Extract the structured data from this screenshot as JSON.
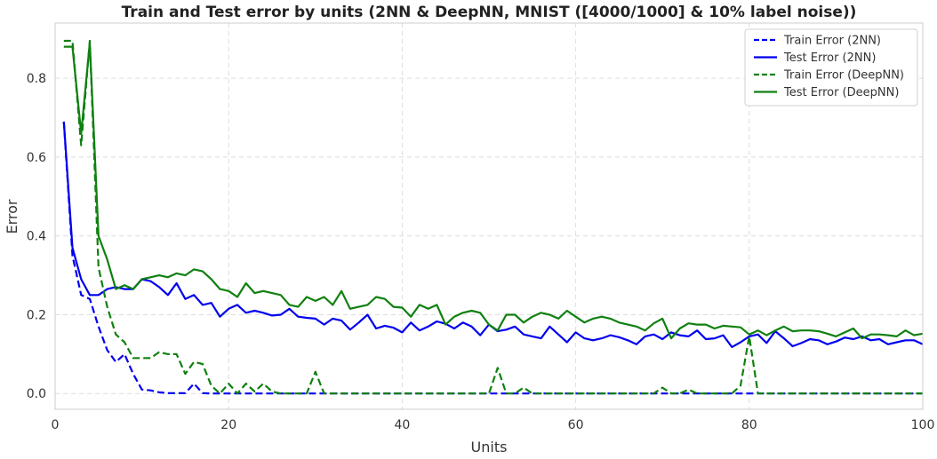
{
  "chart_data": {
    "type": "line",
    "title": "Train and Test error by units (2NN & DeepNN, MNIST ([4000/1000] & 10% label noise))",
    "xlabel": "Units",
    "ylabel": "Error",
    "xlim": [
      0,
      100
    ],
    "ylim": [
      -0.04,
      0.94
    ],
    "xticks": [
      0,
      20,
      40,
      60,
      80,
      100
    ],
    "yticks": [
      0.0,
      0.2,
      0.4,
      0.6,
      0.8
    ],
    "grid": true,
    "legend": "top-right",
    "series": [
      {
        "name": "Train Error (2NN)",
        "color": "#0000ee",
        "style": "dashed",
        "x": [
          1,
          2,
          3,
          4,
          5,
          6,
          7,
          8,
          9,
          10,
          11,
          12,
          13,
          14,
          15,
          16,
          17,
          18,
          19,
          20,
          25,
          30,
          35,
          40,
          45,
          50,
          55,
          60,
          65,
          70,
          75,
          80,
          85,
          90,
          95,
          100
        ],
        "y": [
          0.69,
          0.35,
          0.25,
          0.24,
          0.17,
          0.11,
          0.08,
          0.1,
          0.05,
          0.01,
          0.008,
          0.003,
          0.001,
          0.001,
          0.001,
          0.025,
          0.001,
          0.0,
          0.0,
          0.0,
          0.0,
          0.0,
          0.0,
          0.0,
          0.0,
          0.0,
          0.0,
          0.0,
          0.0,
          0.0,
          0.0,
          0.0,
          0.0,
          0.0,
          0.0,
          0.0
        ]
      },
      {
        "name": "Test Error (2NN)",
        "color": "#0000ee",
        "style": "solid",
        "x": [
          1,
          2,
          3,
          4,
          5,
          6,
          7,
          8,
          9,
          10,
          11,
          12,
          13,
          14,
          15,
          16,
          17,
          18,
          19,
          20,
          21,
          22,
          23,
          24,
          25,
          26,
          27,
          28,
          29,
          30,
          31,
          32,
          33,
          34,
          35,
          36,
          37,
          38,
          39,
          40,
          41,
          42,
          43,
          44,
          45,
          46,
          47,
          48,
          49,
          50,
          51,
          52,
          53,
          54,
          55,
          56,
          57,
          58,
          59,
          60,
          61,
          62,
          63,
          64,
          65,
          66,
          67,
          68,
          69,
          70,
          71,
          72,
          73,
          74,
          75,
          76,
          77,
          78,
          79,
          80,
          81,
          82,
          83,
          84,
          85,
          86,
          87,
          88,
          89,
          90,
          91,
          92,
          93,
          94,
          95,
          96,
          97,
          98,
          99,
          100
        ],
        "y": [
          0.69,
          0.37,
          0.29,
          0.25,
          0.25,
          0.265,
          0.27,
          0.265,
          0.265,
          0.29,
          0.285,
          0.27,
          0.25,
          0.28,
          0.24,
          0.25,
          0.225,
          0.23,
          0.195,
          0.215,
          0.225,
          0.205,
          0.21,
          0.205,
          0.198,
          0.2,
          0.215,
          0.195,
          0.192,
          0.19,
          0.175,
          0.19,
          0.185,
          0.162,
          0.18,
          0.2,
          0.165,
          0.172,
          0.167,
          0.155,
          0.18,
          0.16,
          0.17,
          0.183,
          0.177,
          0.165,
          0.18,
          0.17,
          0.148,
          0.175,
          0.158,
          0.162,
          0.17,
          0.15,
          0.145,
          0.14,
          0.17,
          0.15,
          0.13,
          0.155,
          0.14,
          0.135,
          0.14,
          0.148,
          0.143,
          0.135,
          0.125,
          0.145,
          0.15,
          0.138,
          0.155,
          0.148,
          0.145,
          0.16,
          0.138,
          0.14,
          0.148,
          0.118,
          0.13,
          0.145,
          0.15,
          0.128,
          0.158,
          0.14,
          0.12,
          0.128,
          0.138,
          0.135,
          0.125,
          0.132,
          0.142,
          0.138,
          0.145,
          0.135,
          0.138,
          0.125,
          0.13,
          0.135,
          0.135,
          0.125
        ]
      },
      {
        "name": "Train Error (DeepNN)",
        "color": "#108010",
        "style": "dashed",
        "x": [
          1,
          2,
          3,
          4,
          5,
          6,
          7,
          8,
          9,
          10,
          11,
          12,
          13,
          14,
          15,
          16,
          17,
          18,
          19,
          20,
          21,
          22,
          23,
          24,
          25,
          26,
          27,
          28,
          29,
          30,
          31,
          32,
          35,
          40,
          45,
          50,
          51,
          52,
          53,
          54,
          55,
          56,
          60,
          65,
          69,
          70,
          71,
          72,
          73,
          74,
          75,
          76,
          77,
          78,
          79,
          80,
          81,
          82,
          85,
          90,
          95,
          100
        ],
        "y": [
          0.895,
          0.895,
          0.63,
          0.895,
          0.32,
          0.22,
          0.15,
          0.13,
          0.09,
          0.09,
          0.09,
          0.105,
          0.1,
          0.1,
          0.05,
          0.08,
          0.075,
          0.02,
          0.0,
          0.025,
          0.0,
          0.025,
          0.005,
          0.025,
          0.005,
          0.0,
          0.0,
          0.0,
          0.0,
          0.055,
          0.0,
          0.0,
          0.0,
          0.0,
          0.0,
          0.0,
          0.065,
          0.0,
          0.0,
          0.015,
          0.0,
          0.0,
          0.0,
          0.0,
          0.0,
          0.015,
          0.0,
          0.0,
          0.01,
          0.0,
          0.0,
          0.0,
          0.0,
          0.0,
          0.02,
          0.145,
          0.0,
          0.0,
          0.0,
          0.0,
          0.0,
          0.0
        ]
      },
      {
        "name": "Test Error (DeepNN)",
        "color": "#108010",
        "style": "solid",
        "x": [
          1,
          2,
          3,
          4,
          5,
          6,
          7,
          8,
          9,
          10,
          11,
          12,
          13,
          14,
          15,
          16,
          17,
          18,
          19,
          20,
          21,
          22,
          23,
          24,
          25,
          26,
          27,
          28,
          29,
          30,
          31,
          32,
          33,
          34,
          35,
          36,
          37,
          38,
          39,
          40,
          41,
          42,
          43,
          44,
          45,
          46,
          47,
          48,
          49,
          50,
          51,
          52,
          53,
          54,
          55,
          56,
          57,
          58,
          59,
          60,
          61,
          62,
          63,
          64,
          65,
          66,
          67,
          68,
          69,
          70,
          71,
          72,
          73,
          74,
          75,
          76,
          77,
          78,
          79,
          80,
          81,
          82,
          83,
          84,
          85,
          86,
          87,
          88,
          89,
          90,
          91,
          92,
          93,
          94,
          95,
          96,
          97,
          98,
          99,
          100
        ],
        "y": [
          0.88,
          0.88,
          0.66,
          0.89,
          0.4,
          0.34,
          0.265,
          0.275,
          0.265,
          0.29,
          0.295,
          0.3,
          0.295,
          0.305,
          0.3,
          0.315,
          0.31,
          0.29,
          0.265,
          0.26,
          0.245,
          0.28,
          0.255,
          0.26,
          0.255,
          0.25,
          0.225,
          0.22,
          0.245,
          0.235,
          0.245,
          0.225,
          0.26,
          0.215,
          0.22,
          0.225,
          0.245,
          0.24,
          0.22,
          0.218,
          0.195,
          0.225,
          0.215,
          0.225,
          0.175,
          0.195,
          0.205,
          0.21,
          0.205,
          0.175,
          0.16,
          0.2,
          0.2,
          0.18,
          0.195,
          0.205,
          0.2,
          0.19,
          0.21,
          0.195,
          0.18,
          0.19,
          0.195,
          0.19,
          0.18,
          0.175,
          0.17,
          0.16,
          0.178,
          0.19,
          0.14,
          0.165,
          0.178,
          0.175,
          0.175,
          0.165,
          0.172,
          0.17,
          0.168,
          0.15,
          0.16,
          0.148,
          0.16,
          0.17,
          0.158,
          0.16,
          0.16,
          0.158,
          0.152,
          0.145,
          0.155,
          0.165,
          0.14,
          0.15,
          0.15,
          0.148,
          0.145,
          0.16,
          0.148,
          0.152
        ]
      }
    ]
  }
}
